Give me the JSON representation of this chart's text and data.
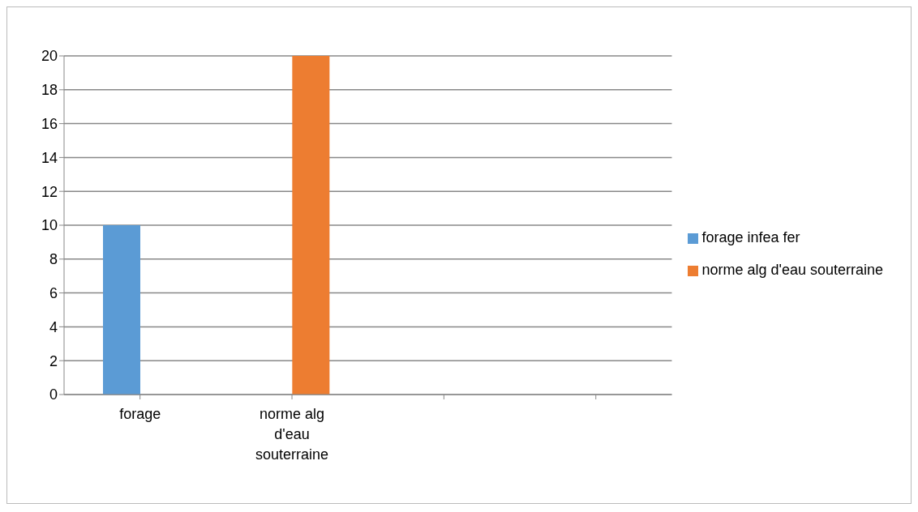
{
  "chart_data": {
    "type": "bar",
    "categories": [
      "forage",
      "norme alg d'eau souterraine",
      null,
      null
    ],
    "series": [
      {
        "name": "forage infea fer",
        "color": "#5b9bd5",
        "values": [
          10,
          null,
          null,
          null
        ]
      },
      {
        "name": "norme alg d'eau souterraine",
        "color": "#ed7d31",
        "values": [
          null,
          20,
          null,
          null
        ]
      }
    ],
    "ylim": [
      0,
      20
    ],
    "yticks": [
      0,
      2,
      4,
      6,
      8,
      10,
      12,
      14,
      16,
      18,
      20
    ],
    "grid": "y",
    "legend": "right"
  }
}
